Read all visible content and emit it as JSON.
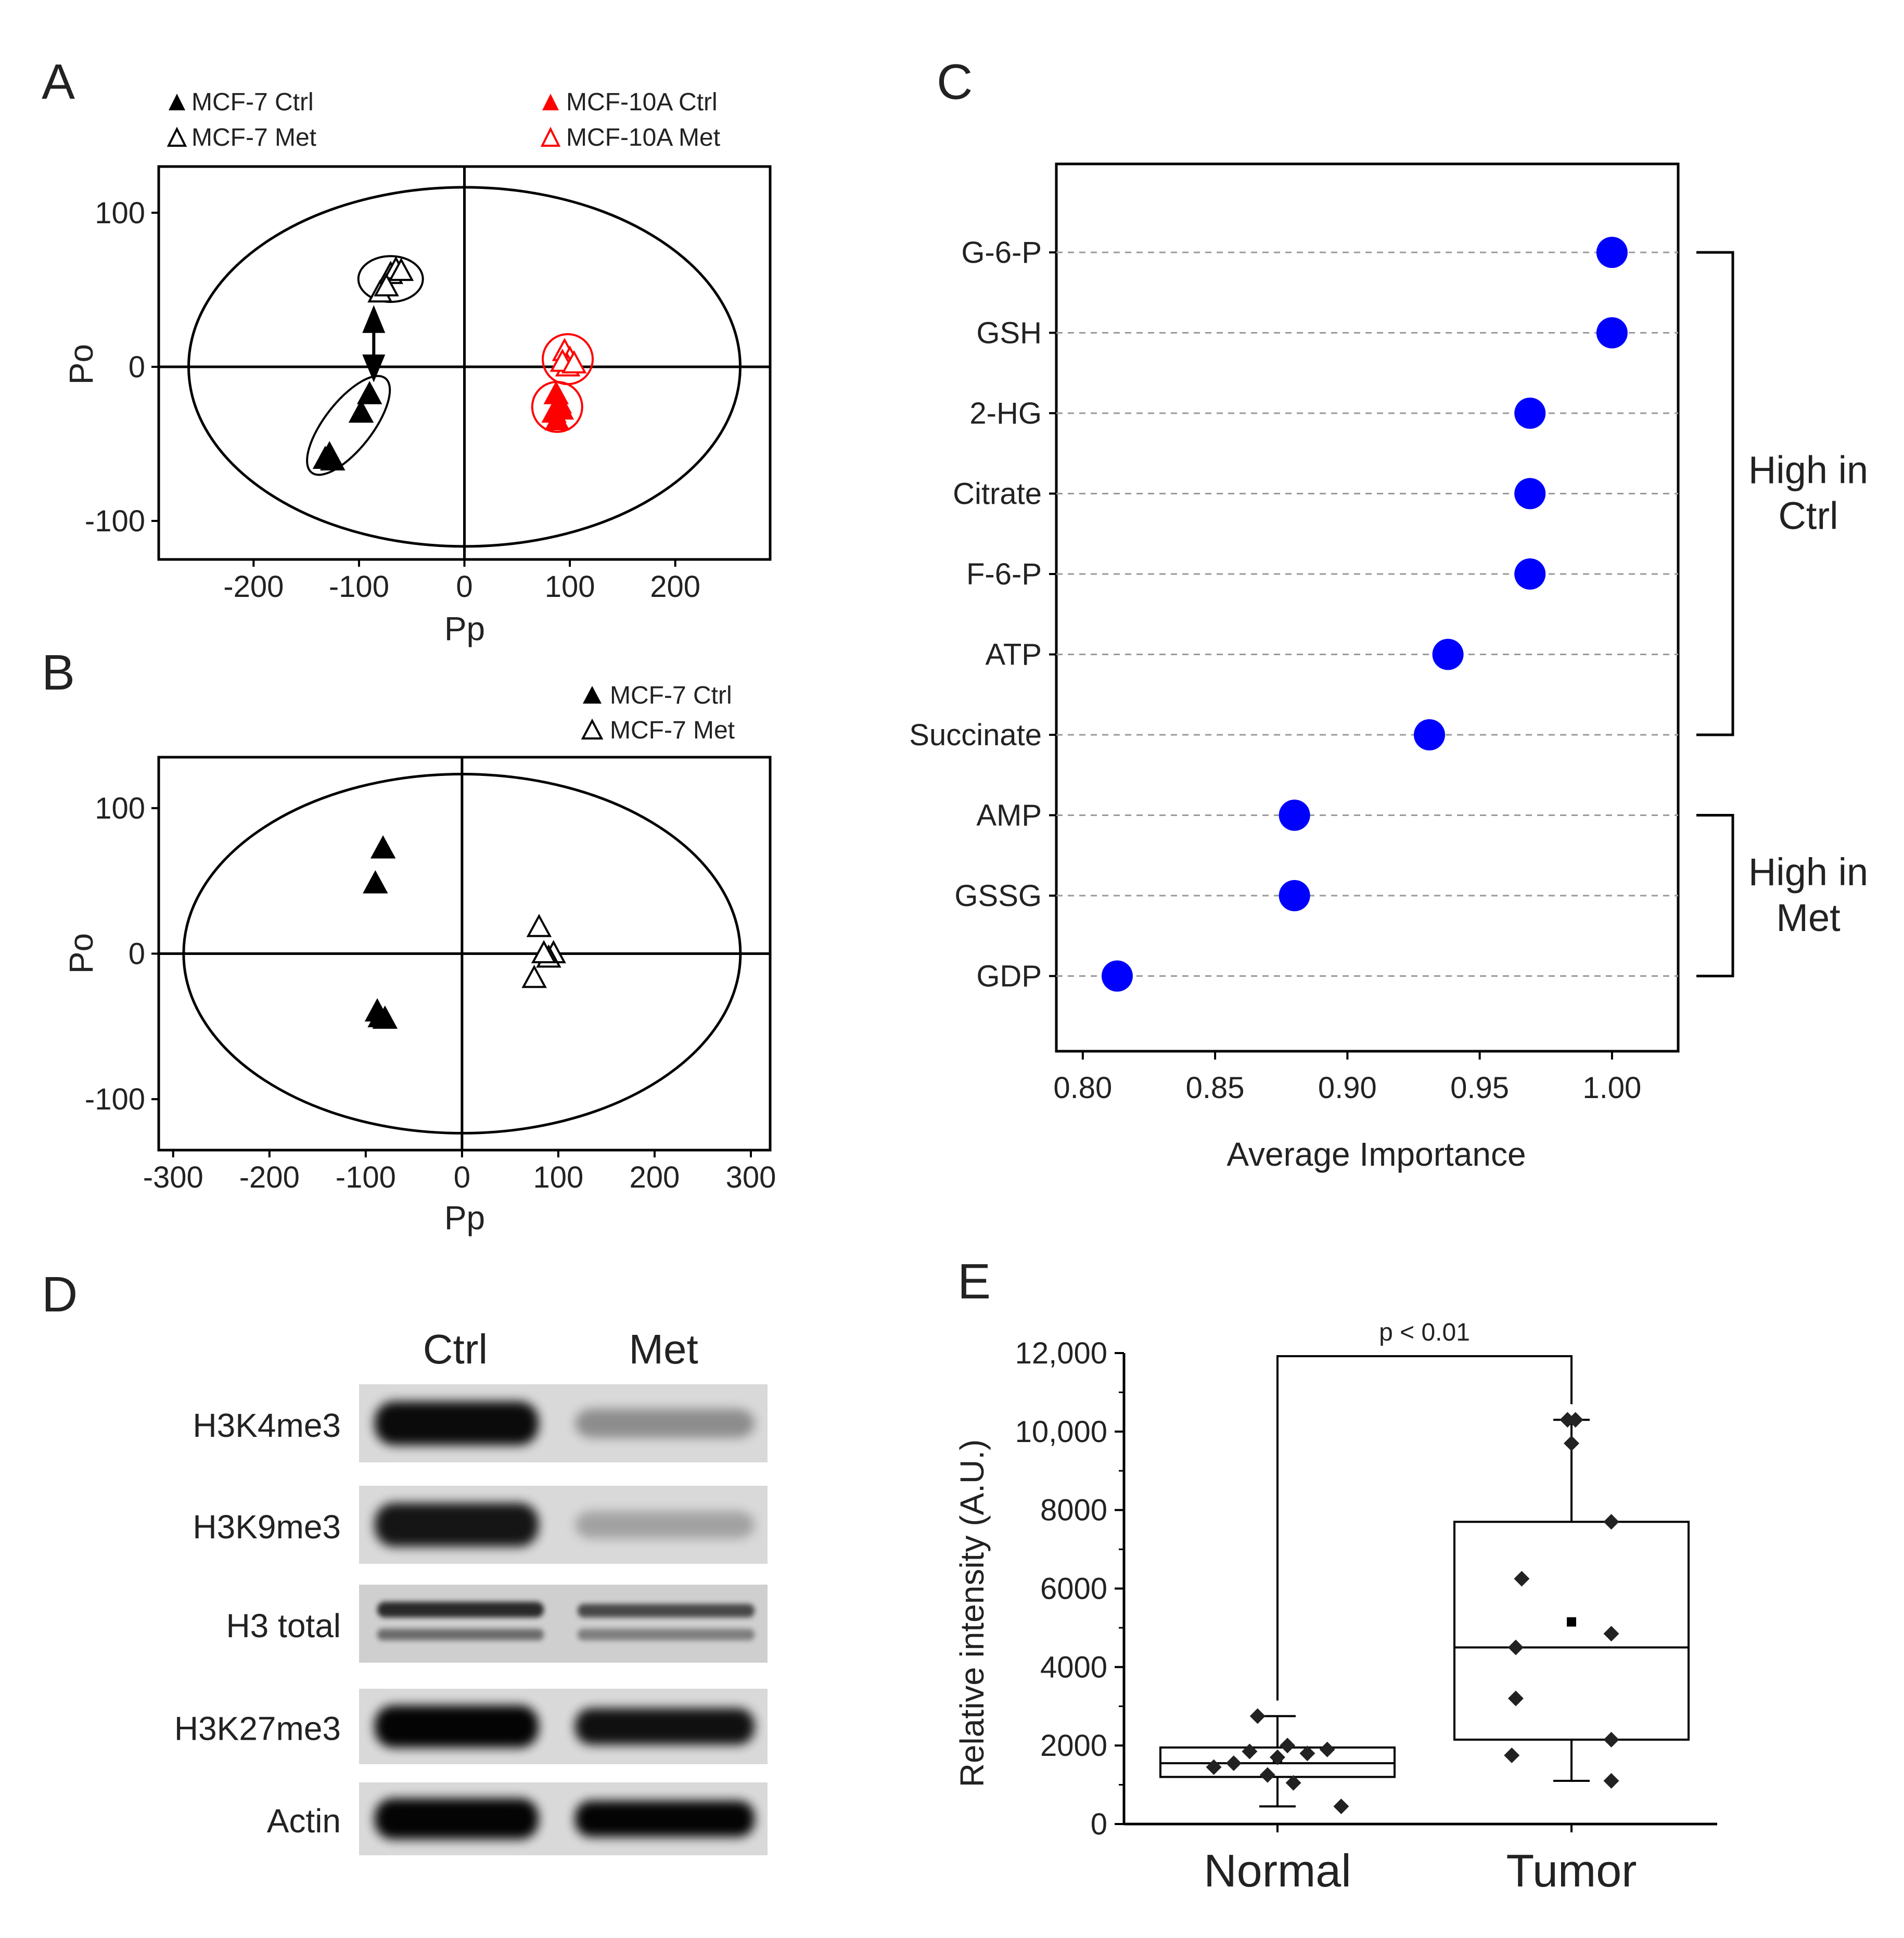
{
  "panels": {
    "a": "A",
    "b": "B",
    "c": "C",
    "d": "D",
    "e": "E"
  },
  "chart_data": [
    {
      "panel": "A",
      "type": "scatter",
      "xlabel": "Pp",
      "ylabel": "Po",
      "xlim": [
        -290,
        290
      ],
      "ylim": [
        -125,
        130
      ],
      "xticks": [
        -200,
        -100,
        0,
        100,
        200
      ],
      "yticks": [
        -100,
        0,
        100
      ],
      "legend": [
        {
          "label": "MCF-7 Ctrl",
          "color": "#000000",
          "filled": true
        },
        {
          "label": "MCF-7 Met",
          "color": "#000000",
          "filled": false
        },
        {
          "label": "MCF-10A Ctrl",
          "color": "#ff0000",
          "filled": true
        },
        {
          "label": "MCF-10A Met",
          "color": "#ff0000",
          "filled": false
        }
      ],
      "series": [
        {
          "name": "MCF-7 Ctrl",
          "filled": true,
          "color": "#000000",
          "points": [
            [
              -90,
              -18
            ],
            [
              -98,
              -30
            ],
            [
              -128,
              -57
            ],
            [
              -132,
              -60
            ],
            [
              -125,
              -61
            ]
          ]
        },
        {
          "name": "MCF-7 Met",
          "filled": false,
          "color": "#000000",
          "points": [
            [
              -80,
              48
            ],
            [
              -70,
              60
            ],
            [
              -65,
              63
            ],
            [
              -60,
              62
            ],
            [
              -74,
              52
            ]
          ]
        },
        {
          "name": "MCF-10A Ctrl",
          "filled": true,
          "color": "#ff0000",
          "points": [
            [
              87,
              -18
            ],
            [
              90,
              -24
            ],
            [
              85,
              -30
            ],
            [
              92,
              -28
            ],
            [
              88,
              -35
            ]
          ]
        },
        {
          "name": "MCF-10A Met",
          "filled": false,
          "color": "#ff0000",
          "points": [
            [
              95,
              10
            ],
            [
              100,
              5
            ],
            [
              98,
              0
            ],
            [
              93,
              3
            ],
            [
              104,
              2
            ]
          ]
        }
      ]
    },
    {
      "panel": "B",
      "type": "scatter",
      "xlabel": "Pp",
      "ylabel": "Po",
      "xlim": [
        -315,
        320
      ],
      "ylim": [
        -135,
        135
      ],
      "xticks": [
        -300,
        -200,
        -100,
        0,
        100,
        200,
        300
      ],
      "yticks": [
        -100,
        0,
        100
      ],
      "legend": [
        {
          "label": "MCF-7 Ctrl",
          "color": "#000000",
          "filled": true
        },
        {
          "label": "MCF-7 Met",
          "color": "#000000",
          "filled": false
        }
      ],
      "series": [
        {
          "name": "MCF-7 Ctrl",
          "filled": true,
          "color": "#000000",
          "points": [
            [
              -82,
              72
            ],
            [
              -90,
              48
            ],
            [
              -88,
              -40
            ],
            [
              -85,
              -44
            ],
            [
              -80,
              -45
            ]
          ]
        },
        {
          "name": "MCF-7 Met",
          "filled": false,
          "color": "#000000",
          "points": [
            [
              80,
              18
            ],
            [
              95,
              0
            ],
            [
              90,
              -3
            ],
            [
              85,
              0
            ],
            [
              75,
              -17
            ]
          ]
        }
      ]
    },
    {
      "panel": "C",
      "type": "scatter",
      "xlabel": "Average Importance",
      "xlim": [
        0.79,
        1.025
      ],
      "xticks": [
        "0.80",
        "0.85",
        "0.90",
        "0.95",
        "1.00"
      ],
      "categories": [
        "G-6-P",
        "GSH",
        "2-HG",
        "Citrate",
        "F-6-P",
        "ATP",
        "Succinate",
        "AMP",
        "GSSG",
        "GDP"
      ],
      "values": [
        1.0,
        1.0,
        0.969,
        0.969,
        0.969,
        0.938,
        0.931,
        0.88,
        0.88,
        0.813
      ],
      "groups": [
        {
          "label_line1": "High in",
          "label_line2": "Ctrl",
          "from": "G-6-P",
          "to": "Succinate"
        },
        {
          "label_line1": "High in",
          "label_line2": "Met",
          "from": "AMP",
          "to": "GDP"
        }
      ]
    },
    {
      "panel": "E",
      "type": "box",
      "ylabel": "Relative intensity (A.U.)",
      "ylim": [
        0,
        12000
      ],
      "yticks": [
        "0",
        "2000",
        "4000",
        "6000",
        "8000",
        "10,000",
        "12,000"
      ],
      "categories": [
        "Normal",
        "Tumor"
      ],
      "annotation": "p < 0.01",
      "boxes": [
        {
          "name": "Normal",
          "whisker_low": 450,
          "q1": 1200,
          "median": 1550,
          "q3": 1950,
          "whisker_high": 2750,
          "mean": 1650,
          "points": [
            [
              -0.32,
              1450
            ],
            [
              -0.22,
              1550
            ],
            [
              -0.14,
              1850
            ],
            [
              -0.05,
              1250
            ],
            [
              0.0,
              1700
            ],
            [
              0.05,
              2000
            ],
            [
              0.08,
              1050
            ],
            [
              0.15,
              1800
            ],
            [
              0.25,
              1900
            ],
            [
              0.32,
              450
            ],
            [
              -0.1,
              2750
            ]
          ]
        },
        {
          "name": "Tumor",
          "whisker_low": 1100,
          "q1": 2150,
          "median": 4500,
          "q3": 7700,
          "whisker_high": 10300,
          "mean": 5150,
          "points": [
            [
              -0.25,
              6250
            ],
            [
              -0.28,
              4500
            ],
            [
              -0.28,
              3200
            ],
            [
              -0.3,
              1750
            ],
            [
              0.0,
              9700
            ],
            [
              0.2,
              7700
            ],
            [
              0.2,
              4850
            ],
            [
              0.2,
              2150
            ],
            [
              0.2,
              1100
            ],
            [
              -0.02,
              10300
            ],
            [
              0.02,
              10300
            ]
          ]
        }
      ]
    }
  ],
  "blot": {
    "columns": [
      "Ctrl",
      "Met"
    ],
    "rows": [
      "H3K4me3",
      "H3K9me3",
      "H3 total",
      "H3K27me3",
      "Actin"
    ],
    "ctrl_intensity": [
      0.95,
      0.9,
      0.8,
      0.98,
      0.98
    ],
    "met_intensity": [
      0.35,
      0.25,
      0.65,
      0.92,
      0.98
    ]
  }
}
